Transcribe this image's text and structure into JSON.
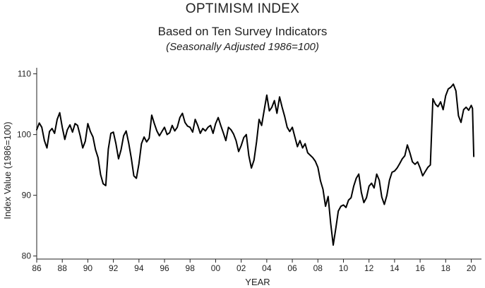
{
  "chart_data": {
    "type": "line",
    "title": "OPTIMISM INDEX",
    "subtitle": "Based on Ten Survey Indicators",
    "subtitle2": "(Seasonally Adjusted 1986=100)",
    "xlabel": "YEAR",
    "ylabel": "Index Value (1986=100)",
    "xlim": [
      1986,
      2020.8
    ],
    "ylim": [
      79.5,
      111
    ],
    "x_ticks": [
      1986,
      1988,
      1990,
      1992,
      1994,
      1996,
      1998,
      2000,
      2002,
      2004,
      2006,
      2008,
      2010,
      2012,
      2014,
      2016,
      2018,
      2020
    ],
    "x_tick_labels": [
      "86",
      "88",
      "90",
      "92",
      "94",
      "96",
      "98",
      "00",
      "02",
      "04",
      "06",
      "08",
      "10",
      "12",
      "14",
      "16",
      "18",
      "20"
    ],
    "y_ticks": [
      80,
      90,
      100,
      110
    ],
    "y_tick_labels": [
      "80",
      "90",
      "100",
      "110"
    ],
    "grid": false,
    "line_color": "#000000",
    "series": [
      {
        "x": [
          1986.0,
          1986.2,
          1986.4,
          1986.6,
          1986.8,
          1987.0,
          1987.2,
          1987.4,
          1987.6,
          1987.8,
          1988.0,
          1988.2,
          1988.4,
          1988.6,
          1988.8,
          1989.0,
          1989.2,
          1989.4,
          1989.6,
          1989.8,
          1990.0,
          1990.2,
          1990.4,
          1990.6,
          1990.8,
          1991.0,
          1991.2,
          1991.4,
          1991.6,
          1991.8,
          1992.0,
          1992.2,
          1992.4,
          1992.6,
          1992.8,
          1993.0,
          1993.2,
          1993.4,
          1993.6,
          1993.8,
          1994.0,
          1994.2,
          1994.4,
          1994.6,
          1994.8,
          1995.0,
          1995.2,
          1995.4,
          1995.6,
          1995.8,
          1996.0,
          1996.2,
          1996.4,
          1996.6,
          1996.8,
          1997.0,
          1997.2,
          1997.4,
          1997.6,
          1997.8,
          1998.0,
          1998.2,
          1998.4,
          1998.6,
          1998.8,
          1999.0,
          1999.2,
          1999.4,
          1999.6,
          1999.8,
          2000.0,
          2000.2,
          2000.4,
          2000.6,
          2000.8,
          2001.0,
          2001.2,
          2001.4,
          2001.6,
          2001.8,
          2002.0,
          2002.2,
          2002.4,
          2002.6,
          2002.8,
          2003.0,
          2003.2,
          2003.4,
          2003.6,
          2003.8,
          2004.0,
          2004.2,
          2004.4,
          2004.6,
          2004.8,
          2005.0,
          2005.2,
          2005.4,
          2005.6,
          2005.8,
          2006.0,
          2006.2,
          2006.4,
          2006.6,
          2006.8,
          2007.0,
          2007.2,
          2007.4,
          2007.6,
          2007.8,
          2008.0,
          2008.2,
          2008.4,
          2008.6,
          2008.8,
          2009.0,
          2009.2,
          2009.4,
          2009.6,
          2009.8,
          2010.0,
          2010.2,
          2010.4,
          2010.6,
          2010.8,
          2011.0,
          2011.2,
          2011.4,
          2011.6,
          2011.8,
          2012.0,
          2012.2,
          2012.4,
          2012.6,
          2012.8,
          2013.0,
          2013.2,
          2013.4,
          2013.6,
          2013.8,
          2014.0,
          2014.2,
          2014.4,
          2014.6,
          2014.8,
          2015.0,
          2015.2,
          2015.4,
          2015.6,
          2015.8,
          2016.0,
          2016.2,
          2016.4,
          2016.6,
          2016.8,
          2017.0,
          2017.2,
          2017.4,
          2017.6,
          2017.8,
          2018.0,
          2018.2,
          2018.4,
          2018.6,
          2018.8,
          2019.0,
          2019.2,
          2019.4,
          2019.6,
          2019.8,
          2020.0,
          2020.1,
          2020.2
        ],
        "y": [
          100.8,
          101.9,
          101.2,
          99.0,
          97.8,
          100.5,
          101.0,
          100.2,
          102.5,
          103.6,
          101.2,
          99.2,
          100.8,
          101.6,
          100.4,
          101.8,
          101.5,
          99.8,
          97.8,
          98.9,
          101.8,
          100.5,
          99.6,
          97.5,
          96.2,
          93.4,
          91.9,
          91.6,
          97.6,
          100.2,
          100.4,
          98.5,
          96.0,
          97.5,
          99.8,
          100.6,
          98.6,
          96.1,
          93.2,
          92.8,
          95.2,
          98.5,
          99.6,
          98.8,
          99.4,
          103.2,
          101.8,
          100.6,
          99.8,
          100.5,
          101.2,
          100.0,
          100.3,
          101.5,
          100.6,
          101.2,
          102.8,
          103.5,
          102.0,
          101.4,
          101.2,
          100.4,
          102.5,
          101.5,
          100.2,
          101.0,
          100.6,
          101.2,
          101.5,
          100.2,
          101.8,
          102.8,
          101.5,
          100.3,
          99.0,
          101.2,
          100.8,
          100.1,
          99.0,
          97.2,
          98.2,
          99.5,
          100.0,
          96.5,
          94.5,
          95.8,
          98.8,
          102.5,
          101.5,
          104.0,
          106.5,
          103.9,
          104.5,
          105.6,
          103.5,
          106.2,
          104.5,
          103.0,
          101.2,
          100.5,
          101.2,
          99.6,
          98.0,
          99.0,
          97.8,
          98.5,
          97.0,
          96.6,
          96.2,
          95.6,
          94.6,
          92.4,
          91.0,
          88.2,
          89.8,
          85.4,
          81.8,
          84.5,
          87.4,
          88.2,
          88.4,
          88.0,
          89.2,
          89.6,
          91.5,
          92.8,
          93.5,
          90.5,
          88.8,
          89.6,
          91.5,
          92.0,
          91.2,
          93.5,
          92.5,
          89.7,
          88.5,
          90.0,
          92.5,
          93.8,
          94.0,
          94.5,
          95.2,
          96.0,
          96.5,
          98.3,
          97.0,
          95.5,
          95.1,
          95.5,
          94.5,
          93.2,
          93.9,
          94.6,
          95.0,
          105.9,
          105.0,
          104.6,
          105.4,
          104.1,
          106.4,
          107.5,
          107.8,
          108.3,
          107.2,
          103.1,
          102.0,
          104.1,
          104.5,
          104.0,
          104.8,
          104.3,
          96.4
        ]
      }
    ]
  }
}
